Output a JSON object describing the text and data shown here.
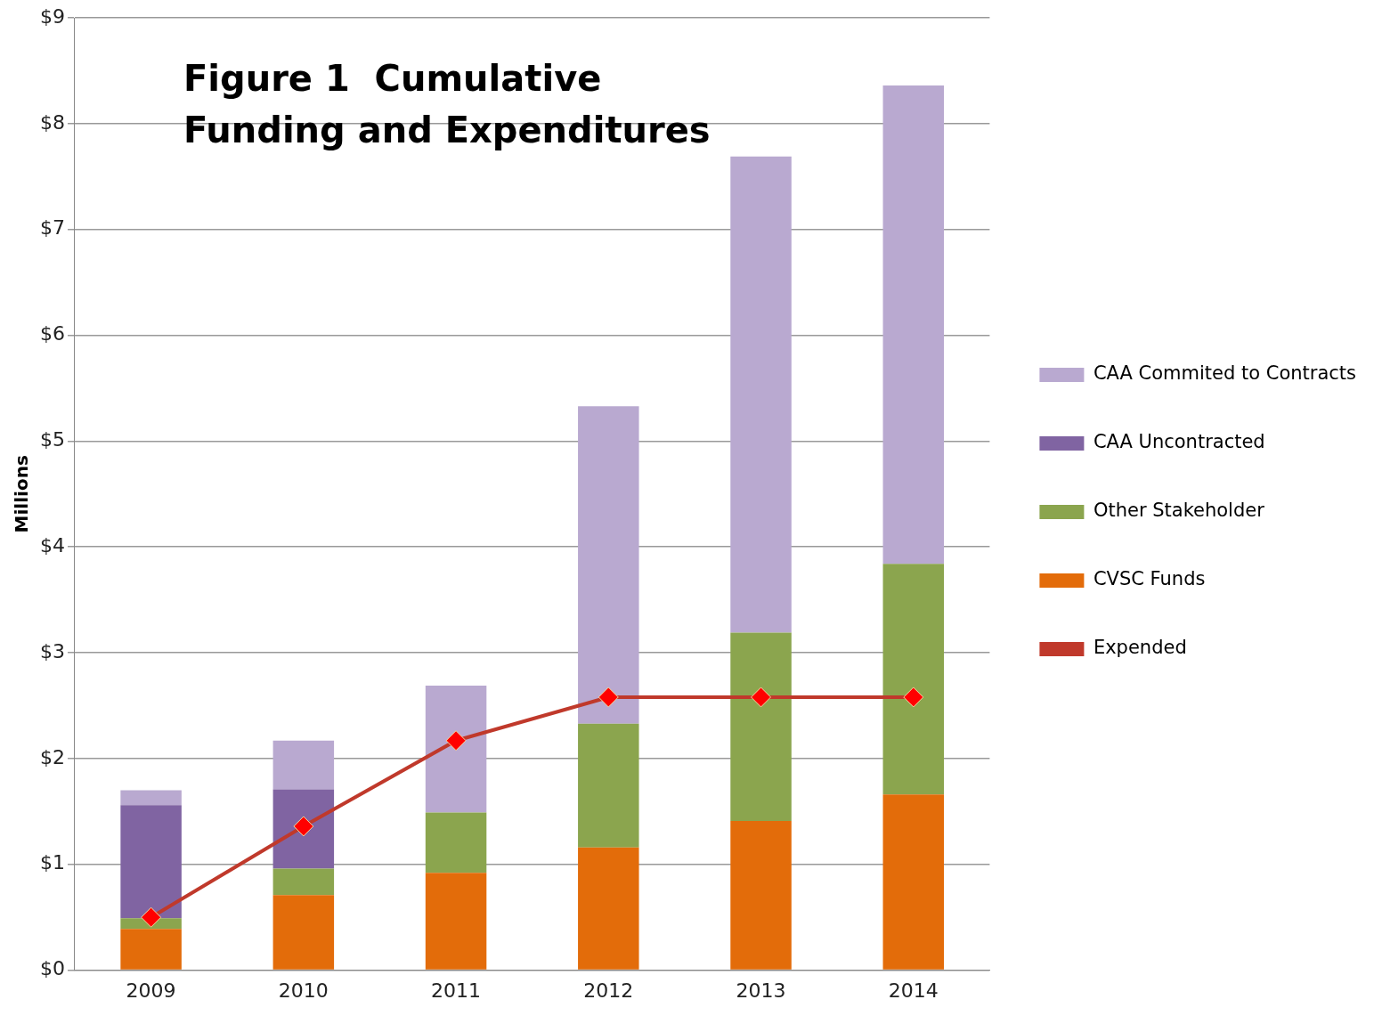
{
  "chart_data": {
    "type": "bar",
    "title": "Figure 1  Cumulative Funding and Expenditures",
    "ylabel": "Millions",
    "categories": [
      "2009",
      "2010",
      "2011",
      "2012",
      "2013",
      "2014"
    ],
    "stacked": true,
    "series": [
      {
        "name": "CVSC Funds",
        "color": "#e36c0a",
        "values": [
          0.39,
          0.71,
          0.92,
          1.16,
          1.41,
          1.66
        ]
      },
      {
        "name": "Other Stakeholder",
        "color": "#8ba54e",
        "values": [
          0.1,
          0.25,
          0.57,
          1.17,
          1.78,
          2.18
        ]
      },
      {
        "name": "CAA Uncontracted",
        "color": "#8064a2",
        "values": [
          1.07,
          0.75,
          null,
          null,
          null,
          null
        ]
      },
      {
        "name": "CAA Commited to Contracts",
        "color": "#b9a9d0",
        "values": [
          0.14,
          0.46,
          1.2,
          3.0,
          4.5,
          4.52
        ]
      },
      {
        "name": "Expended",
        "type": "line",
        "color": "#c0392b",
        "marker": "diamond",
        "values": [
          0.5,
          1.36,
          2.17,
          2.58,
          2.58,
          2.58
        ]
      }
    ],
    "ylim": [
      0,
      9
    ],
    "yticks": [
      {
        "value": 0,
        "label": "$0"
      },
      {
        "value": 1,
        "label": "$1"
      },
      {
        "value": 2,
        "label": "$2"
      },
      {
        "value": 3,
        "label": "$3"
      },
      {
        "value": 4,
        "label": "$4"
      },
      {
        "value": 5,
        "label": "$5"
      },
      {
        "value": 6,
        "label": "$6"
      },
      {
        "value": 7,
        "label": "$7"
      },
      {
        "value": 8,
        "label": "$8"
      },
      {
        "value": 9,
        "label": "$9"
      }
    ],
    "grid": "y",
    "legend": "right"
  }
}
